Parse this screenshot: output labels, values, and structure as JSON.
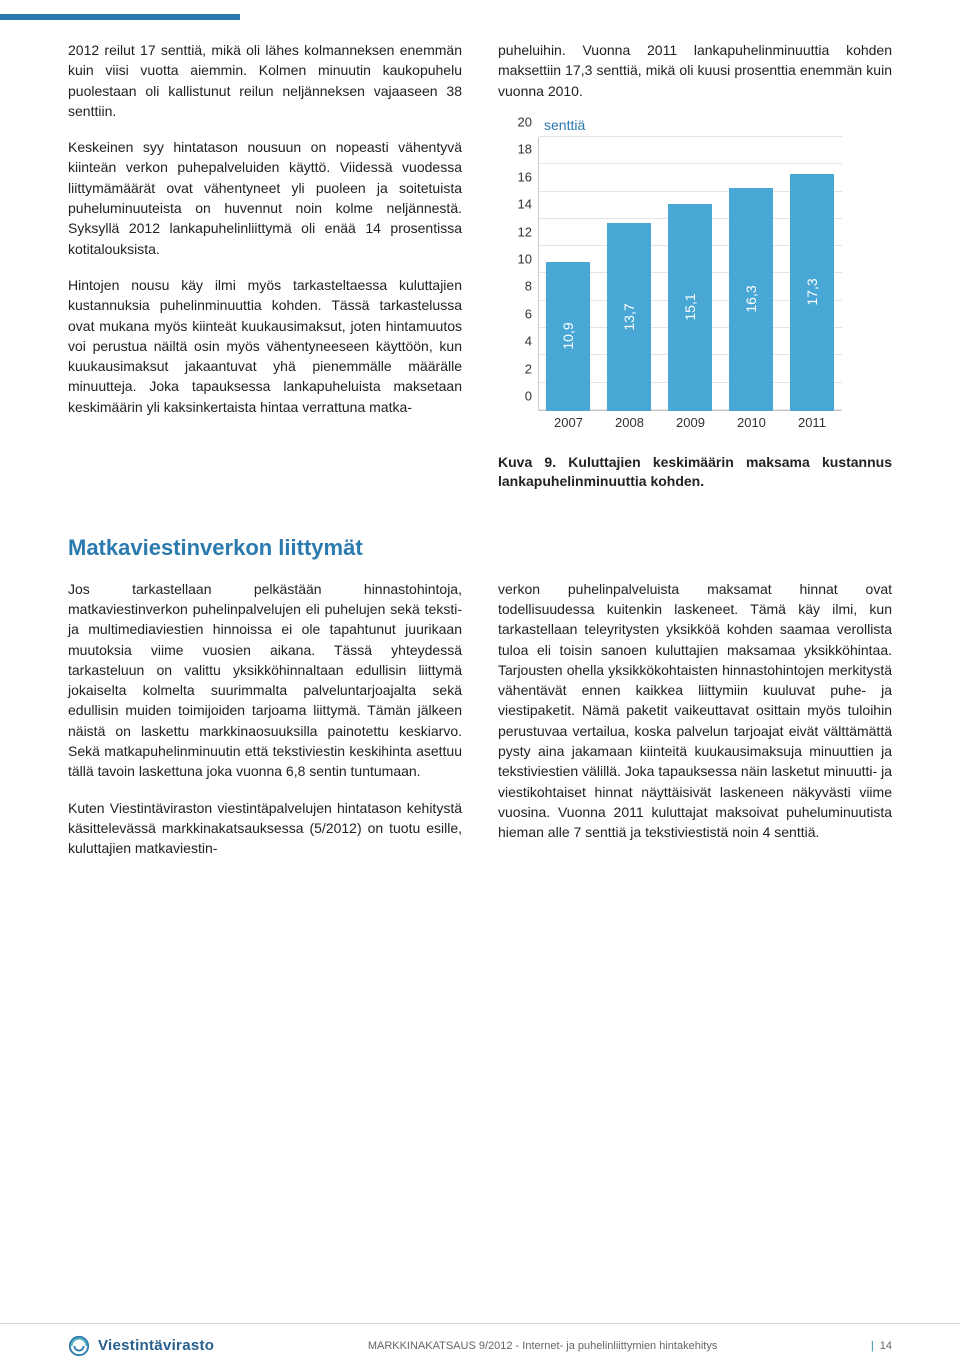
{
  "colors": {
    "accent": "#2a7ab0",
    "bar": "#49a7d5",
    "grid": "#e4e4e4",
    "axis": "#c8c8c8",
    "text": "#222222",
    "footer_sep": "#168a9c"
  },
  "left_col": {
    "p1": "2012 reilut 17 senttiä, mikä oli lähes kolmanneksen enemmän kuin viisi vuotta aiemmin. Kolmen minuutin kaukopuhelu puolestaan oli kallistunut reilun neljänneksen vajaaseen 38 senttiin.",
    "p2": "Keskeinen syy hintatason nousuun on nopeasti vähentyvä kiinteän verkon puhepalveluiden käyttö. Viidessä vuodessa liittymämäärät ovat vähentyneet yli puoleen ja soitetuista puheluminuuteista on huvennut noin kolme neljännestä. Syksyllä 2012 lankapuhelinliittymä oli enää 14 prosentissa kotitalouksista.",
    "p3": "Hintojen nousu käy ilmi myös tarkasteltaessa kuluttajien kustannuksia puhelinminuuttia kohden. Tässä tarkastelussa ovat mukana myös kiinteät kuukausimaksut, joten hintamuutos voi perustua näiltä osin myös vähentyneeseen käyttöön, kun kuukausimaksut jakaantuvat yhä pienemmälle määrälle minuutteja. Joka tapauksessa lankapuheluista maksetaan keskimäärin yli kaksinkertaista hintaa verrattuna matka-"
  },
  "right_col": {
    "p1": "puheluihin. Vuonna 2011 lankapuhelinminuuttia kohden maksettiin 17,3 senttiä, mikä oli kuusi prosenttia enemmän kuin vuonna 2010.",
    "chart": {
      "type": "bar",
      "title": "senttiä",
      "categories": [
        "2007",
        "2008",
        "2009",
        "2010",
        "2011"
      ],
      "values": [
        10.9,
        13.7,
        15.1,
        16.3,
        17.3
      ],
      "value_labels": [
        "10,9",
        "13,7",
        "15,1",
        "16,3",
        "17,3"
      ],
      "bar_color": "#49a7d5",
      "ylim": [
        0,
        20
      ],
      "ytick_step": 2,
      "yticks": [
        0,
        2,
        4,
        6,
        8,
        10,
        12,
        14,
        16,
        18,
        20
      ],
      "grid_color": "#e4e4e4",
      "axis_color": "#c8c8c8",
      "bar_width": 0.6,
      "label_orientation": "vertical",
      "label_color": "#ffffff",
      "label_fontsize": 14
    },
    "caption_bold": "Kuva 9. Kuluttajien keskimäärin maksama kustannus lankapuhelinminuuttia kohden.",
    "caption_rest": ""
  },
  "section_heading": "Matkaviestinverkon liittymät",
  "lower_left": {
    "p1": "Jos tarkastellaan pelkästään hinnastohintoja, matkaviestinverkon puhelinpalvelujen eli puhelujen sekä teksti- ja multimediaviestien hinnoissa ei ole tapahtunut juurikaan muutoksia viime vuosien aikana. Tässä yhteydessä tarkasteluun on valittu yksikköhinnaltaan edullisin liittymä jokaiselta kolmelta suurimmalta palveluntarjoajalta sekä edullisin muiden toimijoiden tarjoama liittymä. Tämän jälkeen näistä on laskettu markkinaosuuksilla painotettu keskiarvo. Sekä matkapuhelinminuutin että tekstiviestin keskihinta asettuu tällä tavoin laskettuna joka vuonna 6,8 sentin tuntumaan.",
    "p2": "Kuten Viestintäviraston viestintäpalvelujen hintatason kehitystä käsittelevässä markkinakatsauksessa (5/2012) on tuotu esille, kuluttajien matkaviestin-"
  },
  "lower_right": {
    "p1": "verkon puhelinpalveluista maksamat hinnat ovat todellisuudessa kuitenkin laskeneet. Tämä käy ilmi, kun tarkastellaan teleyritysten yksikköä kohden saamaa verollista tuloa eli toisin sanoen kuluttajien maksamaa yksikköhintaa. Tarjousten ohella yksikkökohtaisten hinnastohintojen merkitystä vähentävät ennen kaikkea liittymiin kuuluvat puhe- ja viestipaketit. Nämä paketit vaikeuttavat osittain myös tuloihin perustuvaa vertailua, koska palvelun tarjoajat eivät välttämättä pysty aina jakamaan kiinteitä kuukausimaksuja minuuttien ja tekstiviestien välillä. Joka tapauksessa näin lasketut minuutti- ja viestikohtaiset hinnat näyttäisivät laskeneen näkyvästi viime vuosina. Vuonna 2011 kuluttajat maksoivat puheluminuutista hieman alle 7 senttiä ja tekstiviestistä noin 4 senttiä."
  },
  "footer": {
    "brand": "Viestintävirasto",
    "mid": "MARKKINAKATSAUS 9/2012 - Internet- ja puhelinliittymien hintakehitys",
    "page_sep": "|",
    "page_num": "14"
  }
}
